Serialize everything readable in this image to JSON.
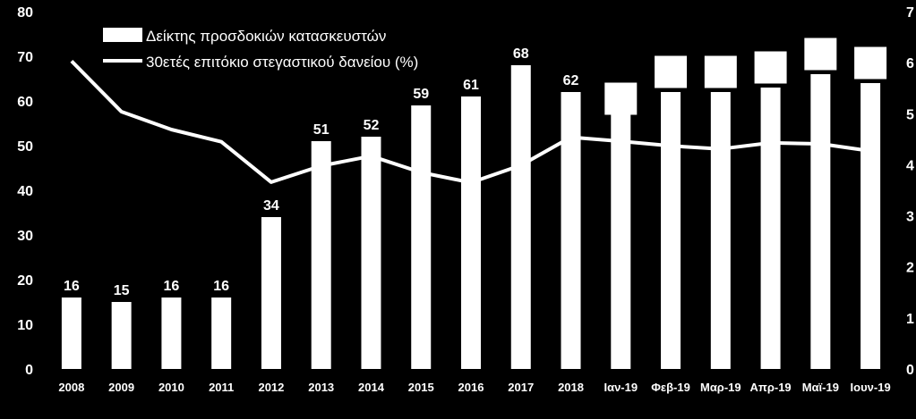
{
  "chart_data": {
    "type": "bar",
    "title": "",
    "categories": [
      "2008",
      "2009",
      "2010",
      "2011",
      "2012",
      "2013",
      "2014",
      "2015",
      "2016",
      "2017",
      "2018",
      "Ιαν-19",
      "Φεβ-19",
      "Μαρ-19",
      "Απρ-19",
      "Μαϊ-19",
      "Ιουν-19"
    ],
    "series": [
      {
        "name": "Δείκτης προσδοκιών κατασκευστών",
        "type": "bar",
        "axis": "left",
        "values": [
          16,
          15,
          16,
          16,
          34,
          51,
          52,
          59,
          61,
          68,
          62,
          58,
          62,
          62,
          63,
          66,
          64
        ],
        "labels": [
          "16",
          "15",
          "16",
          "16",
          "34",
          "51",
          "52",
          "59",
          "61",
          "68",
          "62",
          "",
          "",
          "",
          "",
          "",
          ""
        ],
        "color": "#ffffff"
      },
      {
        "name": "30ετές επιτόκιο στεγαστικού δανείου (%)",
        "type": "line",
        "axis": "right",
        "values": [
          6.03,
          5.04,
          4.69,
          4.45,
          3.66,
          3.98,
          4.17,
          3.85,
          3.65,
          3.99,
          4.54,
          4.46,
          4.37,
          4.31,
          4.43,
          4.41,
          4.27
        ],
        "color": "#ffffff"
      }
    ],
    "markers": {
      "description": "white squares above recent bars",
      "values": [
        60.5,
        66.5,
        66.5,
        67.5,
        70.5,
        68.5
      ],
      "categories": [
        "Ιαν-19",
        "Φεβ-19",
        "Μαρ-19",
        "Απρ-19",
        "Μαϊ-19",
        "Ιουν-19"
      ]
    },
    "y_left": {
      "min": 0,
      "max": 80,
      "ticks": [
        "0",
        "10",
        "20",
        "30",
        "40",
        "50",
        "60",
        "70",
        "80"
      ]
    },
    "y_right": {
      "min": 0,
      "max": 7,
      "ticks": [
        "0",
        "1",
        "2",
        "3",
        "4",
        "5",
        "6",
        "7"
      ]
    },
    "legend": {
      "placement": "top-left"
    },
    "grid": false
  }
}
